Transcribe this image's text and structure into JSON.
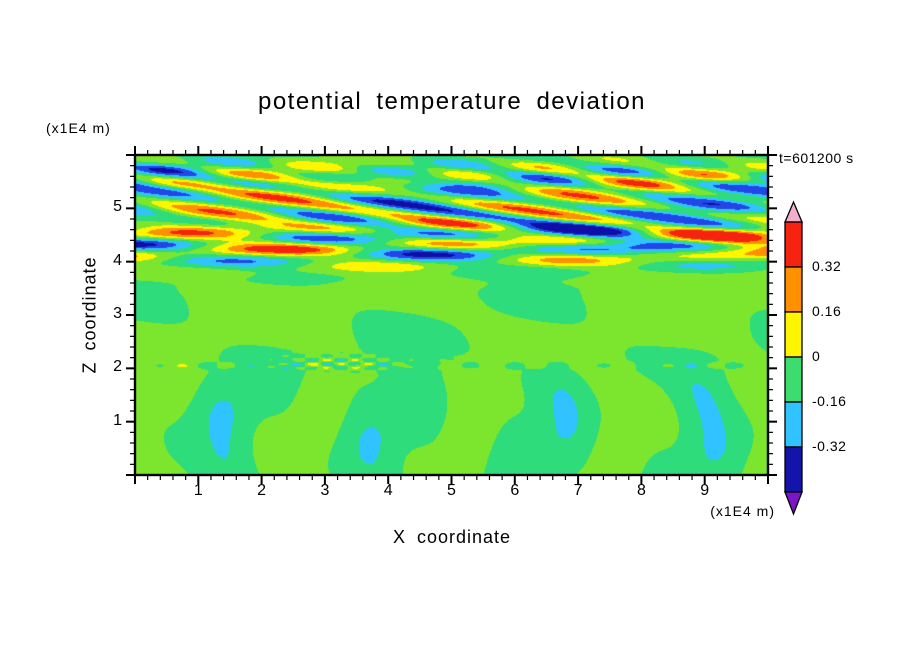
{
  "title": "potential temperature deviation",
  "time_label": "t=601200 s",
  "x_axis": {
    "label": "X coordinate",
    "unit_label": "(x1E4 m)",
    "min": 0,
    "max": 10,
    "major_step": 1,
    "minor_step": 0.2,
    "tick_labels": [
      "1",
      "2",
      "3",
      "4",
      "5",
      "6",
      "7",
      "8",
      "9"
    ]
  },
  "z_axis": {
    "label": "Z coordinate",
    "unit_label": "(x1E4 m)",
    "min": 0,
    "max": 6,
    "major_step": 1,
    "minor_step": 0.2,
    "tick_labels": [
      "1",
      "2",
      "3",
      "4",
      "5"
    ]
  },
  "colorbar": {
    "tick_labels": [
      "0.32",
      "0.16",
      "0",
      "-0.16",
      "-0.32"
    ],
    "segments": [
      {
        "name": "above-range-arrow",
        "color": "#F0AECC"
      },
      {
        "name": "red",
        "color": "#F5230F"
      },
      {
        "name": "orange",
        "color": "#FF9100"
      },
      {
        "name": "yellow",
        "color": "#FFF500"
      },
      {
        "name": "green",
        "color": "#3CDC6E"
      },
      {
        "name": "cyan",
        "color": "#30C3FF"
      },
      {
        "name": "dark-blue",
        "color": "#1414AA"
      },
      {
        "name": "below-range-arrow",
        "color": "#7D14C8"
      }
    ]
  },
  "chart_data": {
    "type": "heatmap",
    "title": "potential temperature deviation",
    "xlabel": "X coordinate (x1E4 m)",
    "ylabel": "Z coordinate (x1E4 m)",
    "time_annotation": "t=601200 s",
    "x_range": [
      0,
      10
    ],
    "z_range": [
      0,
      6
    ],
    "contour_interval": 0.16,
    "colorbar_levels": [
      0.32,
      0.16,
      0,
      -0.16,
      -0.32
    ],
    "palette": {
      "thresholds": [
        -0.64,
        -0.48,
        -0.32,
        -0.16,
        0,
        0.16,
        0.32,
        0.48,
        0.64
      ],
      "colors": [
        "#7D14C8",
        "#0F0FA5",
        "#2346E8",
        "#30C3FF",
        "#2EDC7B",
        "#7CE62E",
        "#FFF500",
        "#FF9100",
        "#F5230F",
        "#F0AECC"
      ]
    },
    "features": [
      "strong horizontally-elongated gravity-wave streaks (red/orange/yellow positive, cyan/blue/navy negative, |deviation| up to ~0.5) between z=4 and z=6",
      "weak mottled green anomalies (|deviation| < 0.16) between z=2.2 and z=3.8",
      "thin disturbed interface line with small speckles near z=2.05",
      "broad quiet convective green/teal cells (|deviation| < 0.16) below z=2"
    ],
    "field_model": {
      "clamp": 0.62,
      "bias_terms": [
        {
          "center_z": 3.1,
          "sigma": 0.9,
          "amp": 0.035,
          "power": 2
        },
        {
          "center_z": 0.9,
          "sigma": 1.2,
          "amp": -0.03,
          "power": 2
        }
      ],
      "wave_layers": [
        {
          "center_z": 5.05,
          "sigma": 0.62,
          "amp": 0.58,
          "kx": 1.9,
          "kz": 6.0,
          "phase": 0.8,
          "kx2": 0.7,
          "kz2": 9.0,
          "phase2": 0.0
        },
        {
          "center_z": 4.3,
          "sigma": 0.42,
          "amp": 0.56,
          "kx": 1.15,
          "kz": -4.5,
          "phase": 2.1,
          "kx2": 0.5,
          "kz2": 11.0,
          "phase2": 1.0
        },
        {
          "center_z": 5.65,
          "sigma": 0.3,
          "amp": 0.4,
          "kx": 2.6,
          "kz": 3.2,
          "phase": 4.2,
          "kx2": 0.9,
          "kz2": 13.0,
          "phase2": 2.2
        },
        {
          "center_z": 4.62,
          "sigma": 0.5,
          "amp": 0.46,
          "kx": 1.5,
          "kz": 5.2,
          "phase": 5.0,
          "kx2": 0.6,
          "kz2": 7.5,
          "phase2": 3.1
        }
      ],
      "mid_mottle": {
        "center_z": 3.0,
        "sigma": 1.05,
        "amp": 0.11,
        "kx": 1.5,
        "kz": 2.9
      },
      "interface_line": {
        "z": 2.05,
        "sigma": 0.055,
        "amp": 0.1,
        "kx": 9.0
      },
      "speckle": {
        "x": 3.2,
        "z": 2.1,
        "sx": 1.0,
        "sz": 0.13,
        "amp": 0.28,
        "kx": 14.0,
        "kz": 40.0
      },
      "convection": {
        "center_z": 0.9,
        "sigma": 1.15,
        "power": 4,
        "amp": 0.125,
        "kx": 2.6,
        "wobble": 0.9,
        "amp2": 0.035,
        "kx2": 5.7
      }
    }
  }
}
